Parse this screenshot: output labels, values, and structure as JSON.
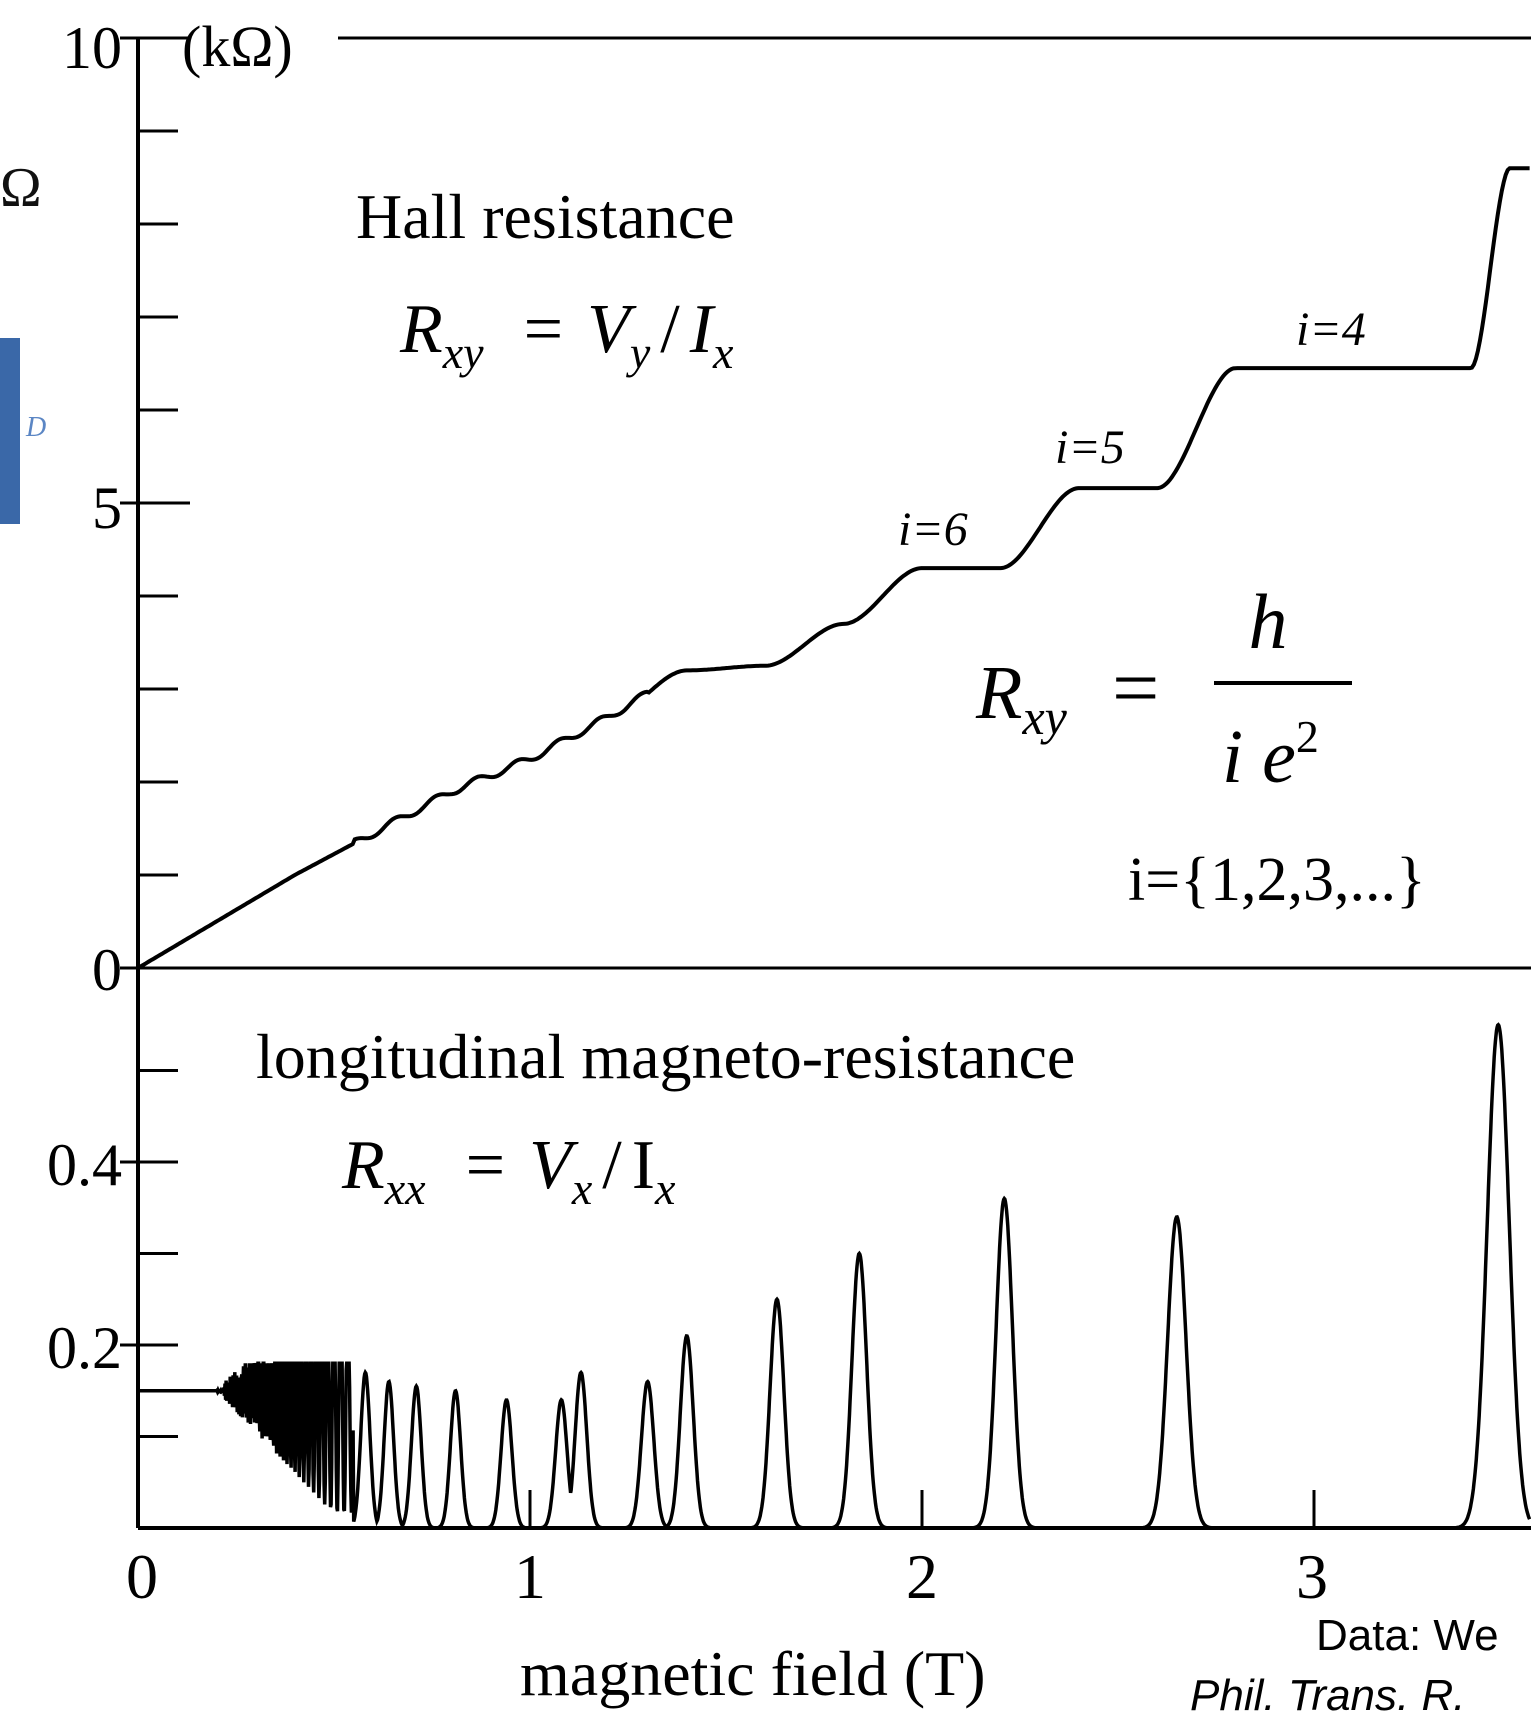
{
  "left_fragment": {
    "glyph": "Ω",
    "label": "D",
    "accent_color": "#3a68a8"
  },
  "chart_data": [
    {
      "type": "line",
      "title": "Hall resistance",
      "formula": {
        "lhs_base": "R",
        "lhs_sub": "xy",
        "rhs": [
          "V",
          "y",
          "I",
          "x"
        ]
      },
      "quantization": {
        "lhs_base": "R",
        "lhs_sub": "xy",
        "numerator": "h",
        "denominator": "i e",
        "exponent": "2",
        "index_set": "i={1,2,3,...}"
      },
      "ylabel": "(kΩ)",
      "yticks": [
        "0",
        "5",
        "10"
      ],
      "ylim": [
        0,
        10
      ],
      "xlim": [
        0,
        3.5
      ],
      "plateaus": [
        {
          "label": "i=6",
          "value": 4.3
        },
        {
          "label": "i=5",
          "value": 5.16
        },
        {
          "label": "i=4",
          "value": 6.45
        }
      ],
      "x": [
        0,
        0.2,
        0.4,
        0.6,
        0.8,
        1.0,
        1.2,
        1.4,
        1.6,
        1.8,
        2.0,
        2.2,
        2.4,
        2.6,
        2.8,
        3.0,
        3.2,
        3.4,
        3.5
      ],
      "y": [
        0,
        0.5,
        1.0,
        1.45,
        1.9,
        2.25,
        2.7,
        3.2,
        3.25,
        3.7,
        4.3,
        4.3,
        5.16,
        5.16,
        6.45,
        6.45,
        6.45,
        6.45,
        8.6
      ]
    },
    {
      "type": "line",
      "title": "longitudinal magneto-resistance",
      "formula": {
        "lhs_base": "R",
        "lhs_sub": "xx",
        "rhs": [
          "V",
          "x",
          "I",
          "x"
        ]
      },
      "yticks": [
        "0.2",
        "0.4"
      ],
      "ylim": [
        0,
        0.55
      ],
      "xlim": [
        0,
        3.5
      ],
      "baseline_level": 0.15,
      "peaks": [
        {
          "x": 0.58,
          "height": 0.17
        },
        {
          "x": 0.64,
          "height": 0.16
        },
        {
          "x": 0.71,
          "height": 0.155
        },
        {
          "x": 0.81,
          "height": 0.15
        },
        {
          "x": 0.94,
          "height": 0.14
        },
        {
          "x": 1.08,
          "height": 0.14
        },
        {
          "x": 1.13,
          "height": 0.17
        },
        {
          "x": 1.3,
          "height": 0.16
        },
        {
          "x": 1.4,
          "height": 0.21
        },
        {
          "x": 1.63,
          "height": 0.25
        },
        {
          "x": 1.84,
          "height": 0.3
        },
        {
          "x": 2.21,
          "height": 0.36
        },
        {
          "x": 2.65,
          "height": 0.34
        },
        {
          "x": 3.47,
          "height": 0.55
        }
      ],
      "xlabel": "magnetic field (T)",
      "xticks": [
        "0",
        "1",
        "2",
        "3"
      ]
    }
  ],
  "citation": {
    "line1": "Data: We",
    "line2": "Phil. Trans. R."
  }
}
